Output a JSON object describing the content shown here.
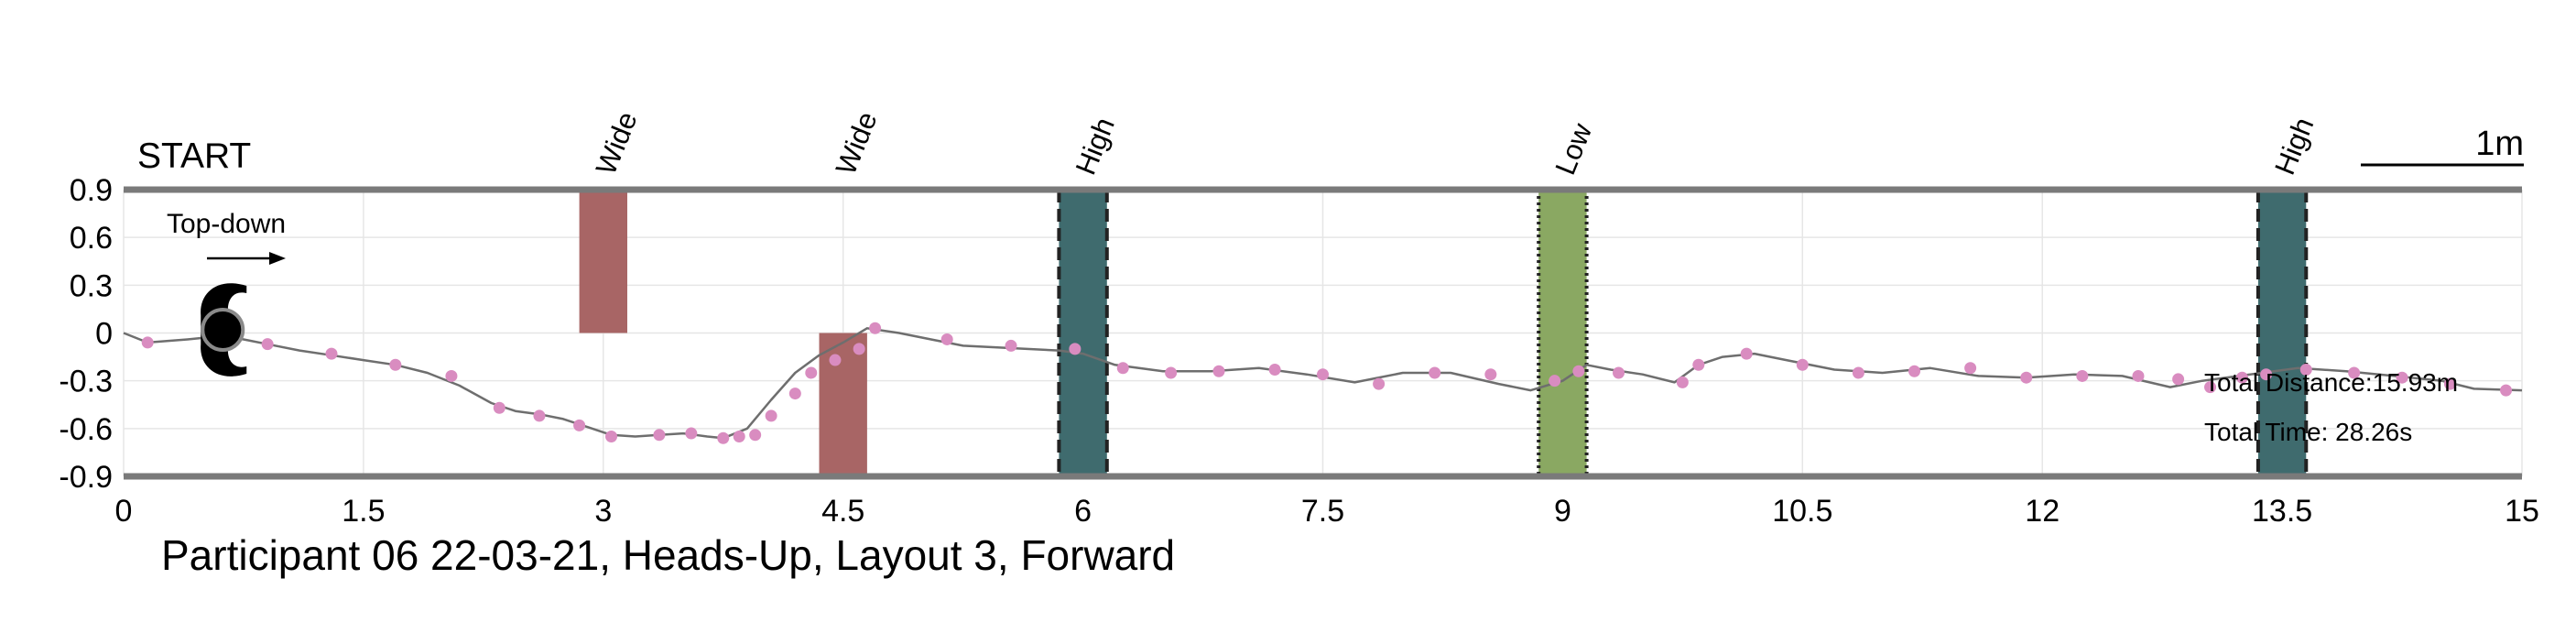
{
  "chart_data": {
    "type": "line",
    "title": "Participant 06 22-03-21, Heads-Up, Layout 3, Forward",
    "start_label": "START",
    "inset_label": "Top-down",
    "scale_label": "1m",
    "xlabel": "",
    "ylabel": "",
    "xlim": [
      0,
      15
    ],
    "ylim": [
      -0.9,
      0.9
    ],
    "xticks": [
      0,
      1.5,
      3,
      4.5,
      6,
      7.5,
      9,
      10.5,
      12,
      13.5,
      15
    ],
    "yticks": [
      0.9,
      0.6,
      0.3,
      0,
      -0.3,
      -0.6,
      -0.9
    ],
    "grid": true,
    "totals": {
      "distance": "Total Distance:15.93m",
      "time": "Total Time: 28.26s"
    },
    "obstacles": [
      {
        "label": "Wide",
        "kind": "wide",
        "x0": 2.85,
        "x1": 3.15,
        "y0": 0.0,
        "y1": 0.9,
        "fill": "#a86565",
        "border": "none"
      },
      {
        "label": "Wide",
        "kind": "wide",
        "x0": 4.35,
        "x1": 4.65,
        "y0": -0.9,
        "y1": 0.0,
        "fill": "#a86565",
        "border": "none"
      },
      {
        "label": "High",
        "kind": "high",
        "x0": 5.85,
        "x1": 6.15,
        "y0": -0.9,
        "y1": 0.9,
        "fill": "#3f6b6e",
        "border": "dashed"
      },
      {
        "label": "Low",
        "kind": "low",
        "x0": 8.85,
        "x1": 9.15,
        "y0": -0.9,
        "y1": 0.9,
        "fill": "#8aa862",
        "border": "dotted"
      },
      {
        "label": "High",
        "kind": "high",
        "x0": 13.35,
        "x1": 13.65,
        "y0": -0.9,
        "y1": 0.9,
        "fill": "#3f6b6e",
        "border": "dashed"
      }
    ],
    "path": {
      "x": [
        0.0,
        0.15,
        0.4,
        0.6,
        0.75,
        0.9,
        1.1,
        1.3,
        1.5,
        1.7,
        1.9,
        2.1,
        2.3,
        2.45,
        2.6,
        2.75,
        2.9,
        3.05,
        3.2,
        3.35,
        3.5,
        3.65,
        3.75,
        3.9,
        4.05,
        4.2,
        4.35,
        4.5,
        4.65,
        4.85,
        5.05,
        5.25,
        5.45,
        5.65,
        5.85,
        6.0,
        6.2,
        6.5,
        6.8,
        7.1,
        7.4,
        7.7,
        8.0,
        8.3,
        8.6,
        8.8,
        9.0,
        9.15,
        9.3,
        9.5,
        9.7,
        9.85,
        10.0,
        10.2,
        10.4,
        10.7,
        11.0,
        11.3,
        11.6,
        11.9,
        12.2,
        12.5,
        12.8,
        13.0,
        13.3,
        13.6,
        13.9,
        14.2,
        14.5,
        14.7,
        15.0
      ],
      "y": [
        0.0,
        -0.06,
        -0.04,
        -0.02,
        -0.04,
        -0.07,
        -0.11,
        -0.14,
        -0.17,
        -0.2,
        -0.25,
        -0.33,
        -0.44,
        -0.49,
        -0.51,
        -0.54,
        -0.59,
        -0.64,
        -0.65,
        -0.64,
        -0.63,
        -0.65,
        -0.66,
        -0.6,
        -0.42,
        -0.25,
        -0.14,
        -0.06,
        0.03,
        0.0,
        -0.04,
        -0.08,
        -0.09,
        -0.1,
        -0.11,
        -0.13,
        -0.2,
        -0.24,
        -0.24,
        -0.22,
        -0.26,
        -0.31,
        -0.25,
        -0.25,
        -0.32,
        -0.36,
        -0.3,
        -0.2,
        -0.23,
        -0.26,
        -0.31,
        -0.2,
        -0.15,
        -0.13,
        -0.17,
        -0.23,
        -0.25,
        -0.22,
        -0.27,
        -0.28,
        -0.26,
        -0.27,
        -0.34,
        -0.3,
        -0.26,
        -0.22,
        -0.24,
        -0.27,
        -0.3,
        -0.35,
        -0.36
      ]
    },
    "markers": {
      "x": [
        0.15,
        0.9,
        1.3,
        1.7,
        2.05,
        2.35,
        2.6,
        2.85,
        3.05,
        3.35,
        3.55,
        3.75,
        3.85,
        3.95,
        4.05,
        4.2,
        4.3,
        4.45,
        4.6,
        4.7,
        5.15,
        5.55,
        5.95,
        6.25,
        6.55,
        6.85,
        7.2,
        7.5,
        7.85,
        8.2,
        8.55,
        8.95,
        9.1,
        9.35,
        9.75,
        9.85,
        10.15,
        10.5,
        10.85,
        11.2,
        11.55,
        11.9,
        12.25,
        12.6,
        12.85,
        13.05,
        13.25,
        13.4,
        13.65,
        13.95,
        14.25,
        14.55,
        14.9
      ],
      "y": [
        -0.06,
        -0.07,
        -0.13,
        -0.2,
        -0.27,
        -0.47,
        -0.52,
        -0.58,
        -0.65,
        -0.64,
        -0.63,
        -0.66,
        -0.65,
        -0.64,
        -0.52,
        -0.38,
        -0.25,
        -0.17,
        -0.1,
        0.03,
        -0.04,
        -0.08,
        -0.1,
        -0.22,
        -0.25,
        -0.24,
        -0.23,
        -0.26,
        -0.32,
        -0.25,
        -0.26,
        -0.3,
        -0.24,
        -0.25,
        -0.31,
        -0.2,
        -0.13,
        -0.2,
        -0.25,
        -0.24,
        -0.22,
        -0.28,
        -0.27,
        -0.27,
        -0.29,
        -0.34,
        -0.28,
        -0.26,
        -0.23,
        -0.25,
        -0.28,
        -0.32,
        -0.36
      ]
    },
    "start_marker": {
      "x": 0.62,
      "y": 0.02
    },
    "colors": {
      "path": "#6e6e6e",
      "marker": "#d98cc0",
      "frame": "#7a7a7a",
      "grid": "#e6e6e6",
      "body": "#000000"
    }
  }
}
